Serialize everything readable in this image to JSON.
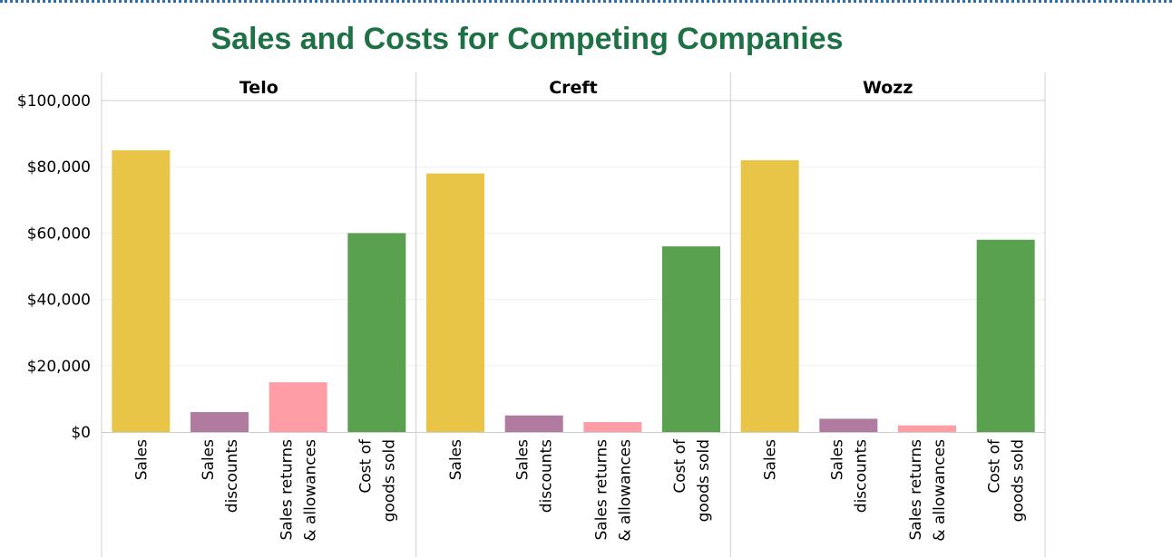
{
  "chart_data": {
    "type": "bar",
    "title": "Sales and Costs for Competing Companies",
    "panels": [
      "Telo",
      "Creft",
      "Wozz"
    ],
    "categories": [
      [
        "Sales"
      ],
      [
        "Sales",
        "discounts"
      ],
      [
        "Sales returns",
        "& allowances"
      ],
      [
        "Cost of",
        "goods sold"
      ]
    ],
    "series": [
      {
        "name": "Telo",
        "values": [
          85000,
          6000,
          15000,
          60000
        ]
      },
      {
        "name": "Creft",
        "values": [
          78000,
          5000,
          3000,
          56000
        ]
      },
      {
        "name": "Wozz",
        "values": [
          82000,
          4000,
          2000,
          58000
        ]
      }
    ],
    "colors": [
      "#e8c547",
      "#b07aa1",
      "#ff9da7",
      "#59a14f"
    ],
    "ylim": [
      0,
      100000
    ],
    "yticks": [
      0,
      20000,
      40000,
      60000,
      80000,
      100000
    ],
    "ytick_labels": [
      "$0",
      "$20,000",
      "$40,000",
      "$60,000",
      "$80,000",
      "$100,000"
    ],
    "xlabel": "",
    "ylabel": "",
    "grid": true
  }
}
